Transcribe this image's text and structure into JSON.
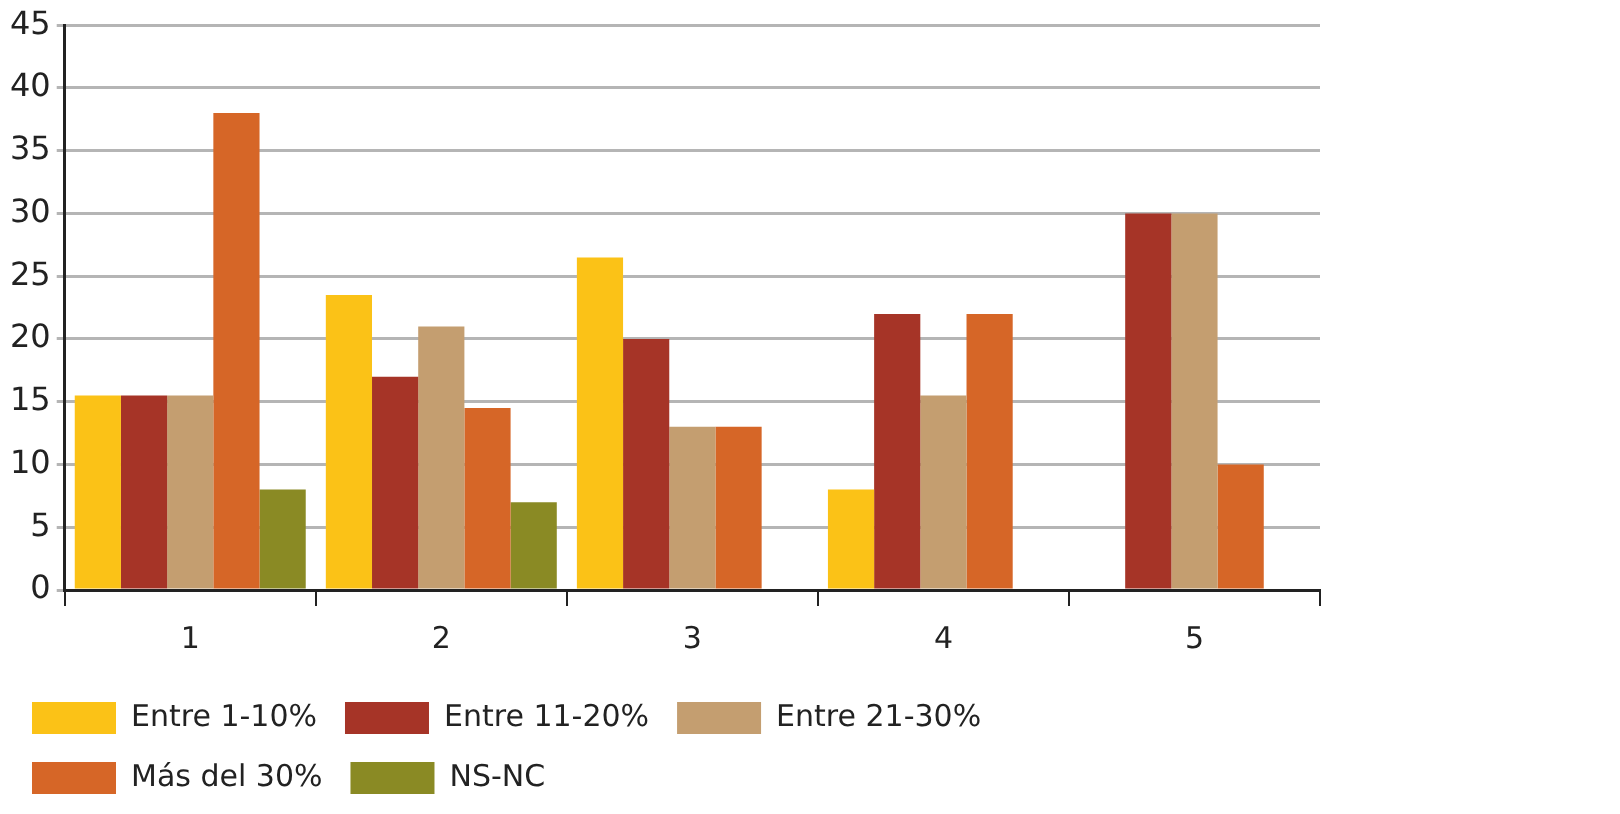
{
  "chart_data": {
    "type": "bar",
    "categories": [
      "1",
      "2",
      "3",
      "4",
      "5"
    ],
    "series": [
      {
        "name": "Entre 1-10%",
        "color": "#fbc217",
        "values": [
          15.5,
          23.5,
          26.5,
          8,
          null
        ]
      },
      {
        "name": "Entre 11-20%",
        "color": "#a63427",
        "values": [
          15.5,
          17,
          20,
          22,
          30
        ]
      },
      {
        "name": "Entre 21-30%",
        "color": "#c49e70",
        "values": [
          15.5,
          21,
          13,
          15.5,
          30
        ]
      },
      {
        "name": "Más del 30%",
        "color": "#d66627",
        "values": [
          38,
          14.5,
          13,
          22,
          10
        ]
      },
      {
        "name": "NS-NC",
        "color": "#8a8a24",
        "values": [
          8,
          7,
          null,
          null,
          null
        ]
      }
    ],
    "ylim": [
      0,
      45
    ],
    "yticks": [
      0,
      5,
      10,
      15,
      20,
      25,
      30,
      35,
      40,
      45
    ],
    "grid": "y",
    "legend": "bottom"
  }
}
